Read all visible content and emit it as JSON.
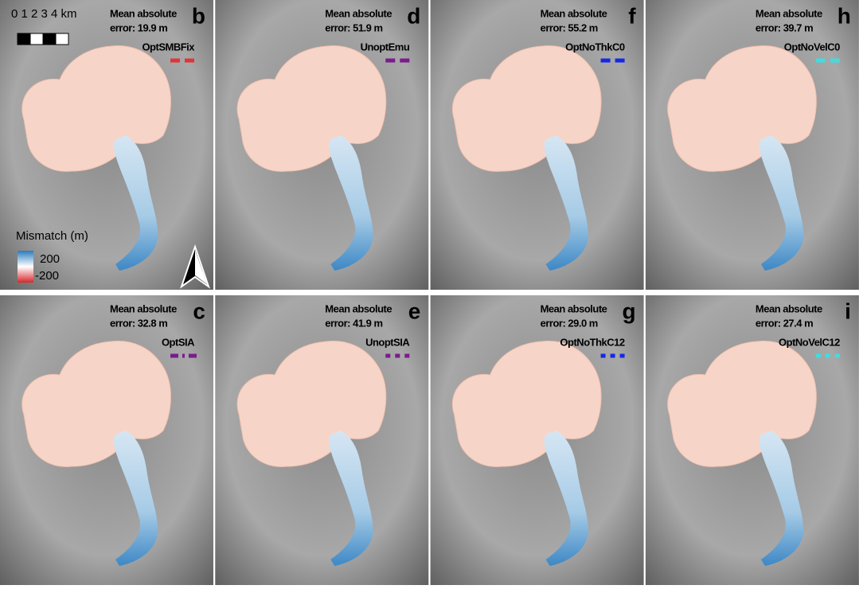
{
  "scale_bar": {
    "label": "0 1 2 3 4 km"
  },
  "legend": {
    "title": "Mismatch (m)",
    "max_label": "200",
    "min_label": "-200"
  },
  "panels": [
    {
      "letter": "b",
      "line1": "Mean absolute",
      "line2": "error: 19.9 m",
      "run": "OptSMBFix",
      "color": "#e0343a",
      "line_style": "dashed"
    },
    {
      "letter": "d",
      "line1": "Mean absolute",
      "line2": "error: 51.9 m",
      "run": "UnoptEmu",
      "color": "#7a1c8c",
      "line_style": "dashed"
    },
    {
      "letter": "f",
      "line1": "Mean absolute",
      "line2": "error: 55.2 m",
      "run": "OptNoThkC0",
      "color": "#1428e6",
      "line_style": "dashed"
    },
    {
      "letter": "h",
      "line1": "Mean absolute",
      "line2": "error: 39.7 m",
      "run": "OptNoVelC0",
      "color": "#3fdde0",
      "line_style": "dashed"
    },
    {
      "letter": "c",
      "line1": "Mean absolute",
      "line2": "error: 32.8 m",
      "run": "OptSIA",
      "color": "#7a1c8c",
      "line_style": "dash-dot"
    },
    {
      "letter": "e",
      "line1": "Mean absolute",
      "line2": "error: 41.9 m",
      "run": "UnoptSIA",
      "color": "#7a1c8c",
      "line_style": "dotted"
    },
    {
      "letter": "g",
      "line1": "Mean absolute",
      "line2": "error: 29.0 m",
      "run": "OptNoThkC12",
      "color": "#1428e6",
      "line_style": "dotted"
    },
    {
      "letter": "i",
      "line1": "Mean absolute",
      "line2": "error: 27.4 m",
      "run": "OptNoVelC12",
      "color": "#3fdde0",
      "line_style": "dotted"
    }
  ]
}
